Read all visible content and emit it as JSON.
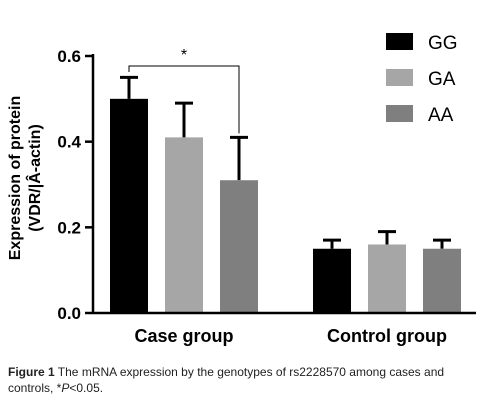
{
  "chart_data": {
    "type": "bar",
    "categories": [
      "Case group",
      "Control group"
    ],
    "series": [
      {
        "name": "GG",
        "color": "#000000",
        "values": [
          0.5,
          0.15
        ],
        "errors": [
          0.05,
          0.02
        ]
      },
      {
        "name": "GA",
        "color": "#a6a6a6",
        "values": [
          0.41,
          0.16
        ],
        "errors": [
          0.08,
          0.03
        ]
      },
      {
        "name": "AA",
        "color": "#7f7f7f",
        "values": [
          0.31,
          0.15
        ],
        "errors": [
          0.1,
          0.02
        ]
      }
    ],
    "ylabel_line1": "Expression of protein",
    "ylabel_line2": "(VDR/|Â-actin)",
    "ylim": [
      0,
      0.6
    ],
    "yticks": [
      "0.0",
      "0.2",
      "0.4",
      "0.6"
    ],
    "legend_position": "top-right",
    "significance": {
      "label": "*",
      "between": [
        "GG",
        "AA"
      ],
      "category": "Case group"
    }
  },
  "caption": {
    "figure_label": "Figure 1",
    "text_before_italic": " The mRNA expression by the genotypes of rs2228570 among cases and controls, *",
    "italic": "P",
    "text_after_italic": "<0.05."
  }
}
